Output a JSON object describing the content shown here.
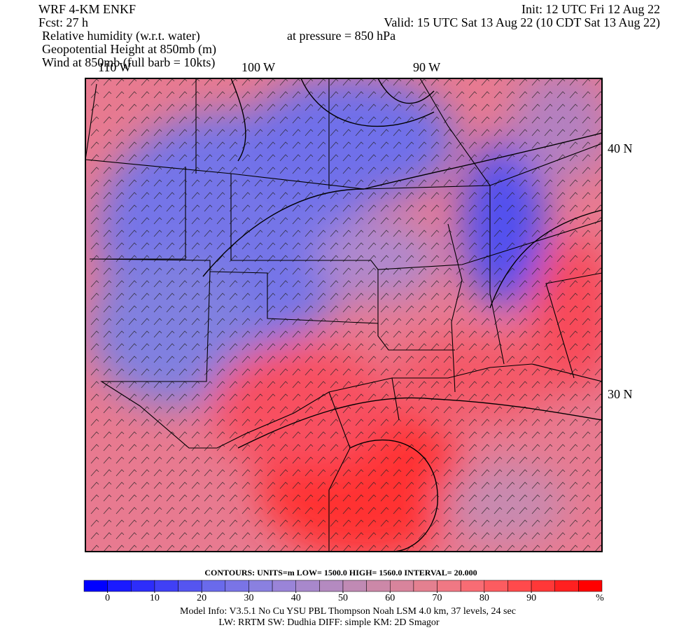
{
  "header": {
    "left": [
      "WRF 4-KM ENKF",
      "Fcst:   27 h",
      "Relative humidity (w.r.t. water)",
      "Geopotential Height at 850mb (m)",
      "Wind at 850mb (full barb = 10kts)"
    ],
    "right": [
      "Init: 12 UTC Fri 12 Aug 22",
      "Valid: 15 UTC Sat 13 Aug 22 (10 CDT Sat 13 Aug 22)",
      "at pressure =  850 hPa"
    ]
  },
  "map": {
    "lon_labels": [
      "110 W",
      "100 W",
      "90 W"
    ],
    "lat_labels": [
      "40 N",
      "30 N"
    ]
  },
  "contours": "CONTOURS:  UNITS=m  LOW=   1500.0      HIGH=   1560.0      INTERVAL=    20.000",
  "colorbar": {
    "lim": [
      -5,
      105
    ],
    "ticks": [
      0,
      10,
      20,
      30,
      40,
      50,
      60,
      70,
      80,
      90
    ],
    "unit": "%",
    "colors": [
      "#0000ff",
      "#1a1aff",
      "#2d2dfa",
      "#4040f5",
      "#5555f0",
      "#6a6aeb",
      "#7a74e6",
      "#8a80e0",
      "#9a84d8",
      "#a888cc",
      "#b48ac0",
      "#c08ab4",
      "#cc88a8",
      "#d8849c",
      "#e48090",
      "#f07884",
      "#f86c74",
      "#fc5c60",
      "#ff4a4c",
      "#ff3838",
      "#ff2020",
      "#ff0000"
    ]
  },
  "footer": [
    "Model Info: V3.5.1    No Cu    YSU PBL  Thompson     Noah LSM  4.0 km,   37 levels,    24 sec",
    "LW: RRTM  SW: Dudhia   DIFF: simple  KM: 2D Smagor"
  ]
}
